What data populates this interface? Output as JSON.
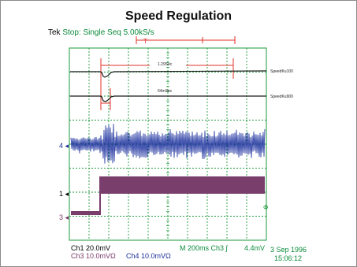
{
  "title": "Speed Regulation",
  "status": {
    "brand": "Tek",
    "mode": "Stop: Single Seq",
    "rate": "5.00kS/s",
    "trigger_marker": "T"
  },
  "annotations": {
    "cursor_label_1": "1.29Sec",
    "cursor_label_2": "64mSec",
    "trace_label_1": "SpeedKu100",
    "trace_label_2": "SpeedKu900"
  },
  "channel_markers": {
    "ch4": "4",
    "ch1": "1",
    "ch3": "3"
  },
  "readout": {
    "ch1": "Ch1  20.0mV",
    "ch3": "Ch3  10.0mVΩ",
    "ch4": "Ch4  10.0mVΩ",
    "timebase": "M 200ms  Ch3 ∫",
    "level": "4.4mV",
    "date": "3 Sep 1996",
    "time": "15:06:12"
  },
  "colors": {
    "grid": "#1e9a3c",
    "ch1_trace": "#1b2f9e",
    "ch3_trace": "#7a3e6c",
    "cursor": "#e0322a",
    "speed_trace": "#1a1a1a"
  }
}
